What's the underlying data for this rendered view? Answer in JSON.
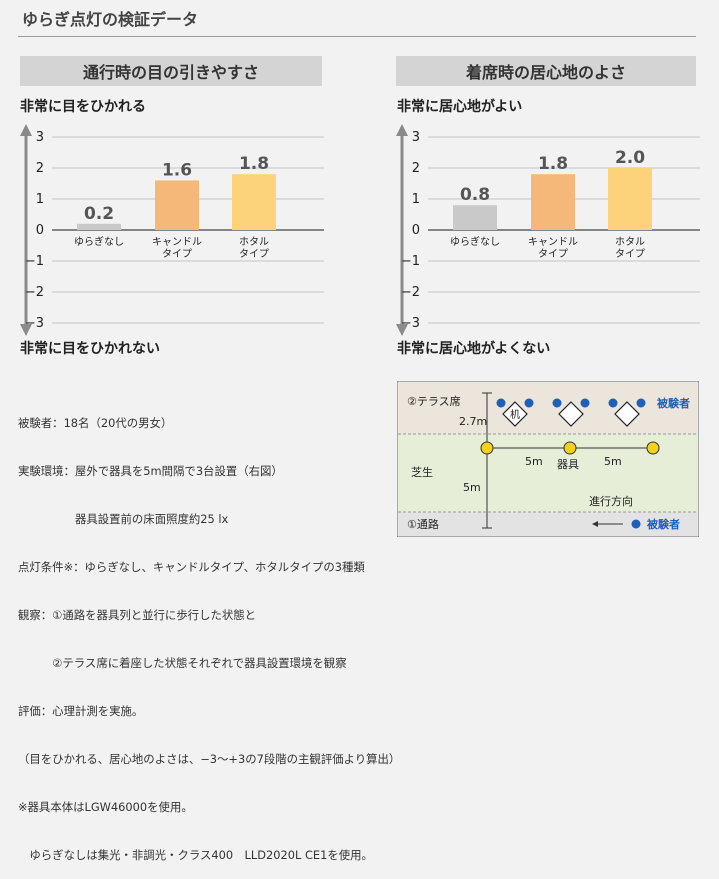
{
  "title": "ゆらぎ点灯の検証データ",
  "panels": [
    {
      "heading": "通行時の目の引きやすさ",
      "top_label": "非常に目をひかれる",
      "bottom_label": "非常に目をひかれない"
    },
    {
      "heading": "着席時の居心地のよさ",
      "top_label": "非常に居心地がよい",
      "bottom_label": "非常に居心地がよくない"
    }
  ],
  "chart_data": [
    {
      "type": "bar",
      "title": "通行時の目の引きやすさ",
      "categories": [
        [
          "ゆらぎなし"
        ],
        [
          "キャンドル",
          "タイプ"
        ],
        [
          "ホタル",
          "タイプ"
        ]
      ],
      "values": [
        0.2,
        1.6,
        1.8
      ],
      "value_labels": [
        "0.2",
        "1.6",
        "1.8"
      ],
      "bar_colors": [
        "#c9c9c9",
        "#f6b879",
        "#fcd27a"
      ],
      "ylim": [
        -3,
        3
      ],
      "yticks": [
        "3",
        "2",
        "1",
        "0",
        "−1",
        "−2",
        "−3"
      ],
      "grid": true
    },
    {
      "type": "bar",
      "title": "着席時の居心地のよさ",
      "categories": [
        [
          "ゆらぎなし"
        ],
        [
          "キャンドル",
          "タイプ"
        ],
        [
          "ホタル",
          "タイプ"
        ]
      ],
      "values": [
        0.8,
        1.8,
        2.0
      ],
      "value_labels": [
        "0.8",
        "1.8",
        "2.0"
      ],
      "bar_colors": [
        "#c9c9c9",
        "#f6b879",
        "#fcd27a"
      ],
      "ylim": [
        -3,
        3
      ],
      "yticks": [
        "3",
        "2",
        "1",
        "0",
        "−1",
        "−2",
        "−3"
      ],
      "grid": true
    }
  ],
  "notes": [
    "被験者：18名（20代の男女）",
    "実験環境：屋外で器具を5m間隔で3台設置（右図）",
    "　　　　　器具設置前の床面照度約25 lx",
    "点灯条件※：ゆらぎなし、キャンドルタイプ、ホタルタイプの3種類",
    "観察：①通路を器具列と並行に歩行した状態と",
    "　　　②テラス席に着座した状態それぞれで器具設置環境を観察",
    "評価：心理計測を実施。",
    "（目をひかれる、居心地のよさは、−3〜+3の7段階の主観評価より算出）",
    "※器具本体はLGW46000を使用。",
    "　ゆらぎなしは集光・非調光・クラス400　LLD2020L CE1を使用。"
  ],
  "diagram": {
    "terrace_label": "②テラス席",
    "desk_label": "机",
    "subject_label": "被験者",
    "lawn_label": "芝生",
    "fixture_label": "器具",
    "dist_terrace": "2.7m",
    "dist_spacing": "5m",
    "dist_path": "5m",
    "direction_label": "進行方向",
    "path_label": "①通路",
    "colors": {
      "terrace": "#ebe5dc",
      "lawn": "#e6eed8",
      "path": "#e3e3e3",
      "subject": "#1f5fb8",
      "fixture": "#f2d21a"
    }
  }
}
